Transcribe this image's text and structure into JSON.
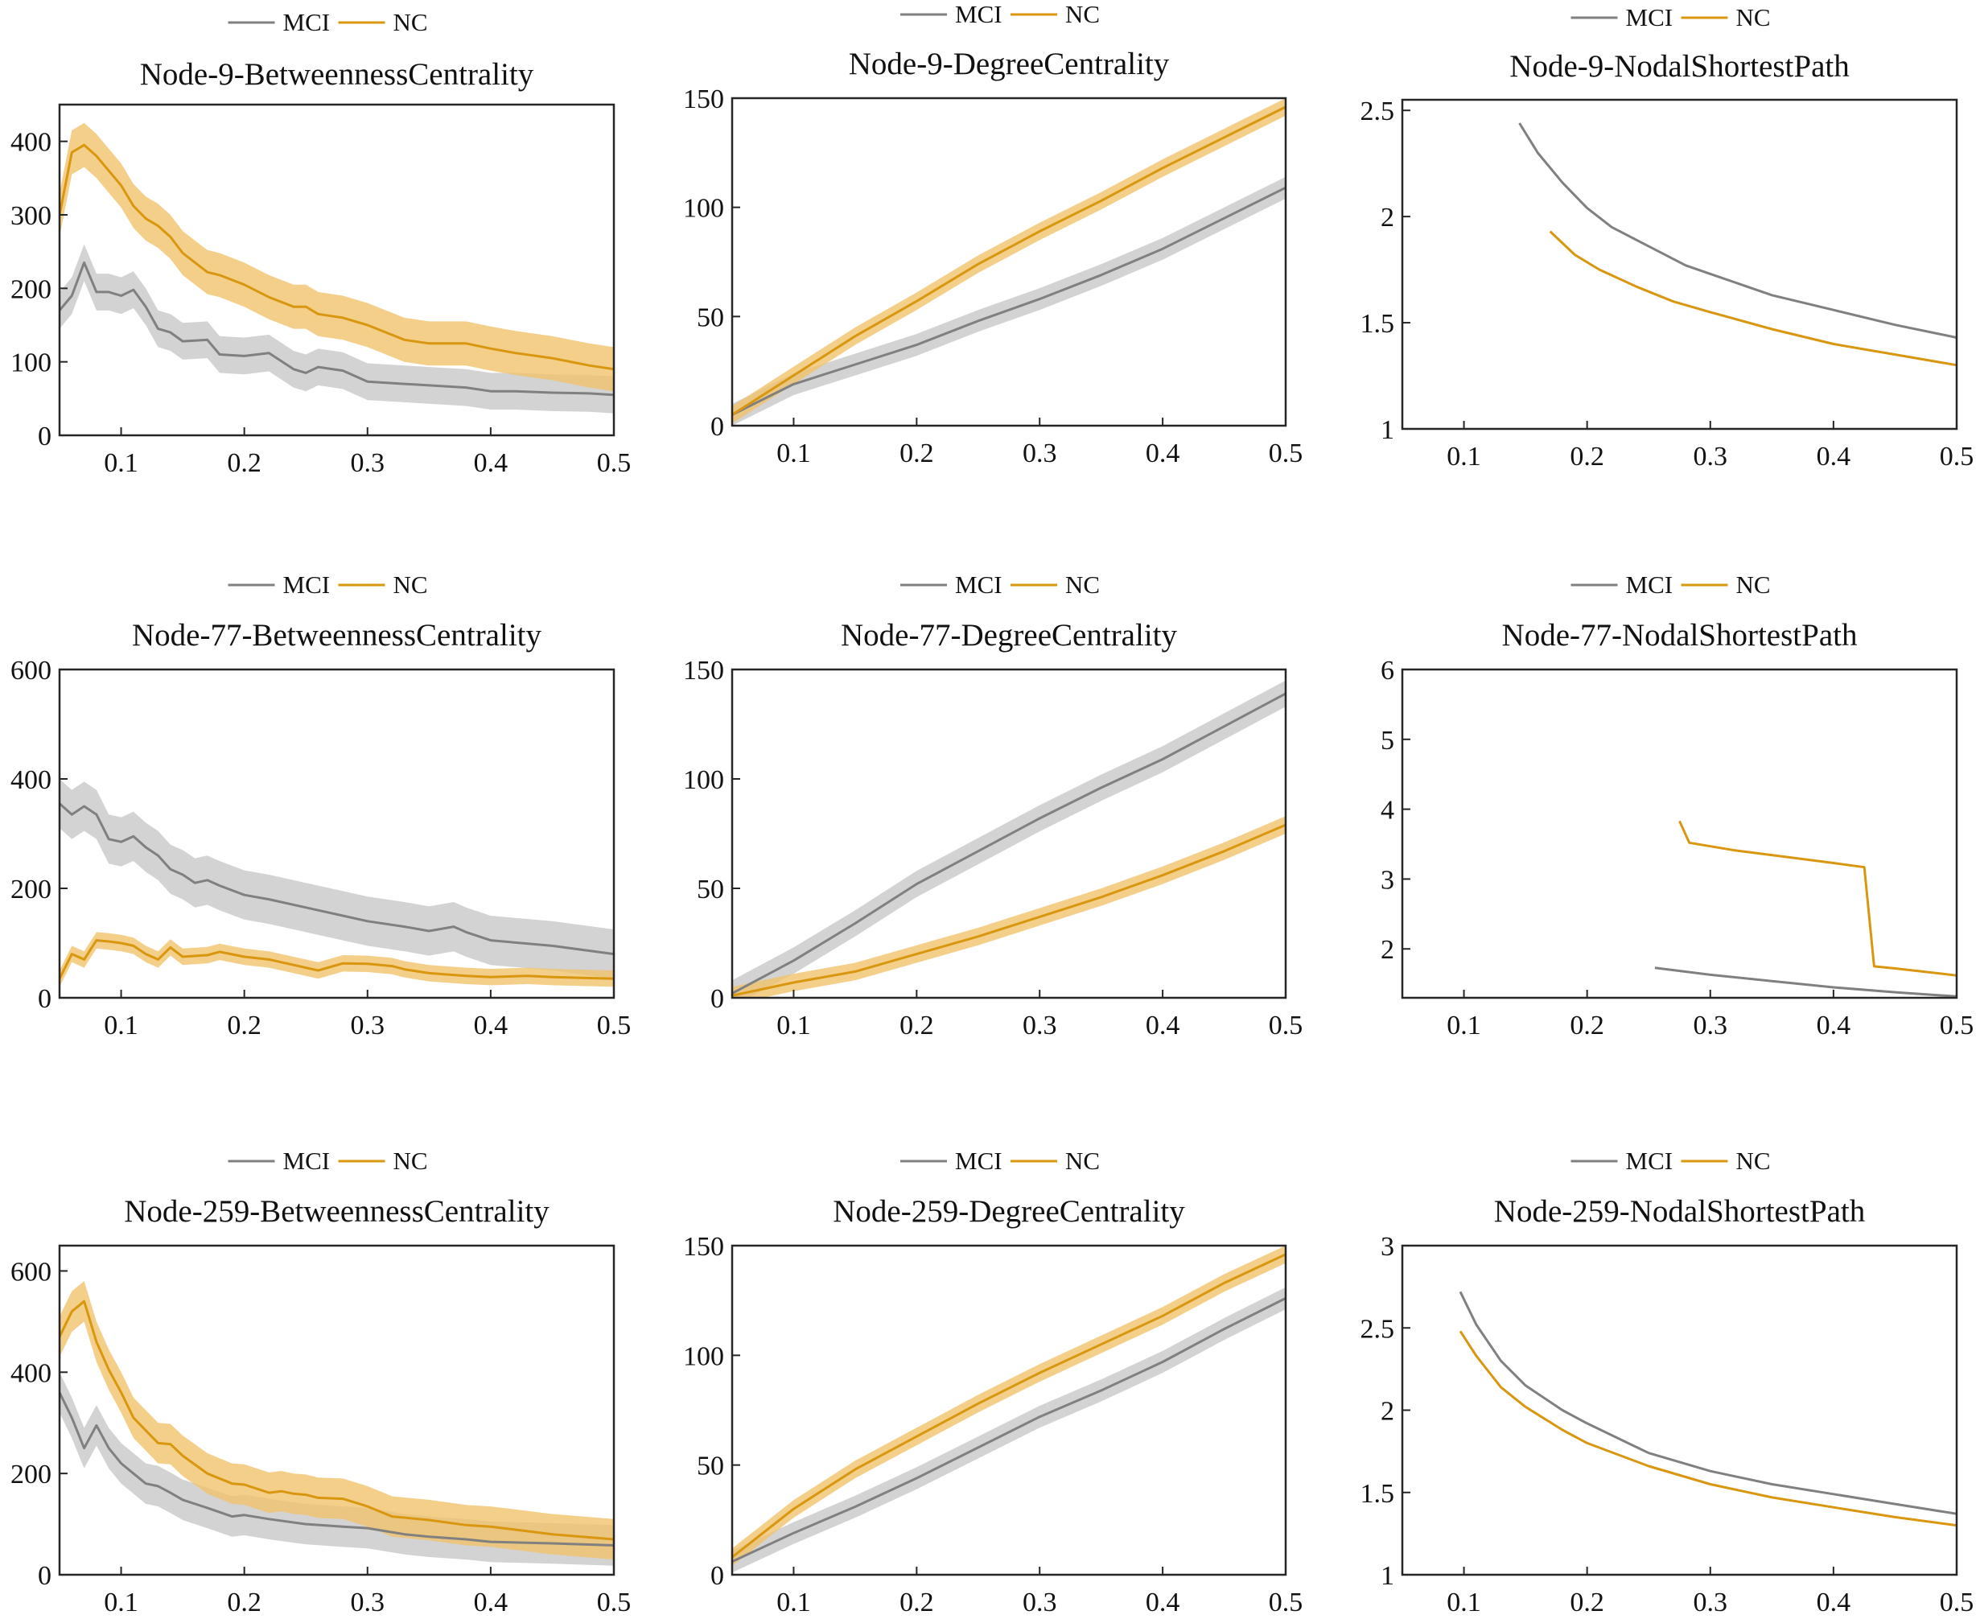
{
  "colors": {
    "mci": "#808080",
    "nc": "#D9960F",
    "mci_band": "#c8c8c8",
    "nc_band": "#f0c36b"
  },
  "legend": {
    "mci_label": "MCI",
    "nc_label": "NC"
  },
  "chart_data": [
    {
      "type": "line",
      "title": "Node-9-BetweennessCentrality",
      "xlabel": "",
      "ylabel": "",
      "xlim": [
        0.05,
        0.5
      ],
      "ylim": [
        0,
        450
      ],
      "xticks": [
        0.1,
        0.2,
        0.3,
        0.4,
        0.5
      ],
      "yticks": [
        0,
        100,
        200,
        300,
        400
      ],
      "series": [
        {
          "name": "MCI",
          "x": [
            0.05,
            0.06,
            0.07,
            0.08,
            0.09,
            0.1,
            0.11,
            0.12,
            0.13,
            0.14,
            0.15,
            0.17,
            0.18,
            0.2,
            0.22,
            0.24,
            0.25,
            0.26,
            0.28,
            0.3,
            0.33,
            0.35,
            0.38,
            0.4,
            0.42,
            0.45,
            0.48,
            0.5
          ],
          "y": [
            170,
            190,
            235,
            195,
            195,
            190,
            198,
            175,
            145,
            140,
            128,
            130,
            110,
            108,
            112,
            90,
            85,
            93,
            88,
            73,
            70,
            68,
            65,
            60,
            60,
            58,
            57,
            55
          ],
          "band": 25
        },
        {
          "name": "NC",
          "x": [
            0.05,
            0.06,
            0.07,
            0.08,
            0.09,
            0.1,
            0.11,
            0.12,
            0.13,
            0.14,
            0.15,
            0.17,
            0.18,
            0.2,
            0.22,
            0.24,
            0.25,
            0.26,
            0.28,
            0.3,
            0.33,
            0.35,
            0.38,
            0.4,
            0.42,
            0.45,
            0.48,
            0.5
          ],
          "y": [
            300,
            385,
            395,
            380,
            360,
            340,
            312,
            295,
            285,
            270,
            248,
            222,
            218,
            205,
            188,
            175,
            175,
            165,
            160,
            150,
            130,
            125,
            125,
            118,
            112,
            105,
            95,
            90
          ],
          "band": 30
        }
      ]
    },
    {
      "type": "line",
      "title": "Node-9-DegreeCentrality",
      "xlabel": "",
      "ylabel": "",
      "xlim": [
        0.05,
        0.5
      ],
      "ylim": [
        0,
        150
      ],
      "xticks": [
        0.1,
        0.2,
        0.3,
        0.4,
        0.5
      ],
      "yticks": [
        0,
        50,
        100,
        150
      ],
      "series": [
        {
          "name": "MCI",
          "x": [
            0.05,
            0.1,
            0.15,
            0.2,
            0.25,
            0.3,
            0.35,
            0.4,
            0.45,
            0.5
          ],
          "y": [
            5,
            19,
            28,
            37,
            48,
            58,
            69,
            81,
            95,
            109
          ],
          "band": 5
        },
        {
          "name": "NC",
          "x": [
            0.05,
            0.1,
            0.15,
            0.2,
            0.25,
            0.3,
            0.35,
            0.4,
            0.45,
            0.5
          ],
          "y": [
            5,
            23,
            41,
            57,
            74,
            89,
            103,
            118,
            132,
            146
          ],
          "band": 4
        }
      ]
    },
    {
      "type": "line",
      "title": "Node-9-NodalShortestPath",
      "xlabel": "",
      "ylabel": "",
      "xlim": [
        0.05,
        0.5
      ],
      "ylim": [
        1,
        2.55
      ],
      "xticks": [
        0.1,
        0.2,
        0.3,
        0.4,
        0.5
      ],
      "yticks": [
        1,
        1.5,
        2,
        2.5
      ],
      "series": [
        {
          "name": "MCI",
          "x": [
            0.145,
            0.16,
            0.18,
            0.2,
            0.22,
            0.25,
            0.28,
            0.3,
            0.35,
            0.4,
            0.45,
            0.5
          ],
          "y": [
            2.44,
            2.3,
            2.16,
            2.04,
            1.95,
            1.86,
            1.77,
            1.73,
            1.63,
            1.56,
            1.49,
            1.43
          ],
          "band": 0
        },
        {
          "name": "NC",
          "x": [
            0.17,
            0.19,
            0.21,
            0.24,
            0.27,
            0.3,
            0.35,
            0.4,
            0.45,
            0.5
          ],
          "y": [
            1.93,
            1.82,
            1.75,
            1.67,
            1.6,
            1.55,
            1.47,
            1.4,
            1.35,
            1.3
          ],
          "band": 0
        }
      ]
    },
    {
      "type": "line",
      "title": "Node-77-BetweennessCentrality",
      "xlabel": "",
      "ylabel": "",
      "xlim": [
        0.05,
        0.5
      ],
      "ylim": [
        0,
        600
      ],
      "xticks": [
        0.1,
        0.2,
        0.3,
        0.4,
        0.5
      ],
      "yticks": [
        0,
        200,
        400,
        600
      ],
      "series": [
        {
          "name": "MCI",
          "x": [
            0.05,
            0.06,
            0.07,
            0.08,
            0.09,
            0.1,
            0.11,
            0.12,
            0.13,
            0.14,
            0.15,
            0.16,
            0.17,
            0.18,
            0.2,
            0.22,
            0.25,
            0.28,
            0.3,
            0.33,
            0.35,
            0.37,
            0.38,
            0.4,
            0.45,
            0.5
          ],
          "y": [
            355,
            335,
            350,
            335,
            290,
            285,
            295,
            275,
            260,
            235,
            225,
            210,
            215,
            205,
            188,
            180,
            165,
            150,
            140,
            130,
            122,
            130,
            120,
            105,
            95,
            80
          ],
          "band": 45
        },
        {
          "name": "NC",
          "x": [
            0.05,
            0.06,
            0.07,
            0.08,
            0.09,
            0.1,
            0.11,
            0.12,
            0.13,
            0.14,
            0.15,
            0.17,
            0.18,
            0.2,
            0.22,
            0.24,
            0.25,
            0.26,
            0.28,
            0.3,
            0.32,
            0.33,
            0.35,
            0.38,
            0.4,
            0.43,
            0.45,
            0.5
          ],
          "y": [
            35,
            80,
            70,
            105,
            103,
            100,
            95,
            80,
            70,
            92,
            75,
            78,
            84,
            75,
            70,
            60,
            55,
            50,
            63,
            62,
            58,
            52,
            45,
            40,
            38,
            40,
            38,
            35
          ],
          "band": 15
        }
      ]
    },
    {
      "type": "line",
      "title": "Node-77-DegreeCentrality",
      "xlabel": "",
      "ylabel": "",
      "xlim": [
        0.05,
        0.5
      ],
      "ylim": [
        0,
        150
      ],
      "xticks": [
        0.1,
        0.2,
        0.3,
        0.4,
        0.5
      ],
      "yticks": [
        0,
        50,
        100,
        150
      ],
      "series": [
        {
          "name": "MCI",
          "x": [
            0.05,
            0.1,
            0.15,
            0.2,
            0.25,
            0.3,
            0.35,
            0.4,
            0.45,
            0.5
          ],
          "y": [
            2,
            17,
            34,
            52,
            67,
            82,
            96,
            109,
            124,
            139
          ],
          "band": 6
        },
        {
          "name": "NC",
          "x": [
            0.05,
            0.1,
            0.15,
            0.2,
            0.25,
            0.3,
            0.35,
            0.4,
            0.45,
            0.5
          ],
          "y": [
            1,
            7,
            12,
            20,
            28,
            37,
            46,
            56,
            67,
            79
          ],
          "band": 4
        }
      ]
    },
    {
      "type": "line",
      "title": "Node-77-NodalShortestPath",
      "xlabel": "",
      "ylabel": "",
      "xlim": [
        0.05,
        0.5
      ],
      "ylim": [
        1.3,
        6
      ],
      "xticks": [
        0.1,
        0.2,
        0.3,
        0.4,
        0.5
      ],
      "yticks": [
        2,
        3,
        4,
        5,
        6
      ],
      "series": [
        {
          "name": "MCI",
          "x": [
            0.255,
            0.3,
            0.35,
            0.4,
            0.45,
            0.5
          ],
          "y": [
            1.73,
            1.63,
            1.54,
            1.45,
            1.38,
            1.32
          ],
          "band": 0
        },
        {
          "name": "NC",
          "x": [
            0.275,
            0.283,
            0.32,
            0.36,
            0.4,
            0.425,
            0.433,
            0.45,
            0.5
          ],
          "y": [
            3.83,
            3.52,
            3.41,
            3.32,
            3.23,
            3.17,
            1.75,
            1.72,
            1.62
          ],
          "band": 0
        }
      ]
    },
    {
      "type": "line",
      "title": "Node-259-BetweennessCentrality",
      "xlabel": "",
      "ylabel": "",
      "xlim": [
        0.05,
        0.5
      ],
      "ylim": [
        0,
        650
      ],
      "xticks": [
        0.1,
        0.2,
        0.3,
        0.4,
        0.5
      ],
      "yticks": [
        0,
        200,
        400,
        600
      ],
      "series": [
        {
          "name": "MCI",
          "x": [
            0.05,
            0.06,
            0.07,
            0.08,
            0.09,
            0.1,
            0.11,
            0.12,
            0.13,
            0.14,
            0.15,
            0.17,
            0.19,
            0.2,
            0.22,
            0.25,
            0.28,
            0.3,
            0.33,
            0.35,
            0.38,
            0.4,
            0.45,
            0.5
          ],
          "y": [
            360,
            310,
            250,
            295,
            250,
            220,
            200,
            180,
            175,
            162,
            148,
            132,
            115,
            118,
            110,
            100,
            95,
            92,
            80,
            75,
            70,
            65,
            62,
            58
          ],
          "band": 40
        },
        {
          "name": "NC",
          "x": [
            0.05,
            0.06,
            0.07,
            0.08,
            0.09,
            0.1,
            0.11,
            0.12,
            0.13,
            0.14,
            0.15,
            0.17,
            0.19,
            0.2,
            0.22,
            0.23,
            0.24,
            0.25,
            0.26,
            0.28,
            0.3,
            0.32,
            0.35,
            0.38,
            0.4,
            0.45,
            0.5
          ],
          "y": [
            470,
            520,
            540,
            460,
            405,
            360,
            310,
            285,
            260,
            258,
            235,
            200,
            180,
            178,
            162,
            165,
            160,
            158,
            152,
            150,
            135,
            115,
            108,
            98,
            95,
            80,
            70
          ],
          "band": 40
        }
      ]
    },
    {
      "type": "line",
      "title": "Node-259-DegreeCentrality",
      "xlabel": "",
      "ylabel": "",
      "xlim": [
        0.05,
        0.5
      ],
      "ylim": [
        0,
        150
      ],
      "xticks": [
        0.1,
        0.2,
        0.3,
        0.4,
        0.5
      ],
      "yticks": [
        0,
        50,
        100,
        150
      ],
      "series": [
        {
          "name": "MCI",
          "x": [
            0.05,
            0.1,
            0.15,
            0.2,
            0.25,
            0.3,
            0.35,
            0.4,
            0.45,
            0.5
          ],
          "y": [
            6,
            19,
            31,
            44,
            58,
            72,
            84,
            97,
            112,
            126
          ],
          "band": 5
        },
        {
          "name": "NC",
          "x": [
            0.05,
            0.1,
            0.15,
            0.2,
            0.25,
            0.3,
            0.35,
            0.4,
            0.45,
            0.5
          ],
          "y": [
            8,
            30,
            48,
            63,
            78,
            92,
            105,
            118,
            133,
            146
          ],
          "band": 4
        }
      ]
    },
    {
      "type": "line",
      "title": "Node-259-NodalShortestPath",
      "xlabel": "",
      "ylabel": "",
      "xlim": [
        0.05,
        0.5
      ],
      "ylim": [
        1,
        3
      ],
      "xticks": [
        0.1,
        0.2,
        0.3,
        0.4,
        0.5
      ],
      "yticks": [
        1,
        1.5,
        2,
        2.5,
        3
      ],
      "series": [
        {
          "name": "MCI",
          "x": [
            0.097,
            0.11,
            0.13,
            0.15,
            0.18,
            0.2,
            0.25,
            0.3,
            0.35,
            0.4,
            0.45,
            0.5
          ],
          "y": [
            2.72,
            2.52,
            2.3,
            2.15,
            2.0,
            1.92,
            1.74,
            1.63,
            1.55,
            1.49,
            1.43,
            1.37
          ],
          "band": 0
        },
        {
          "name": "NC",
          "x": [
            0.097,
            0.11,
            0.13,
            0.15,
            0.18,
            0.2,
            0.25,
            0.3,
            0.35,
            0.4,
            0.45,
            0.5
          ],
          "y": [
            2.48,
            2.33,
            2.14,
            2.02,
            1.88,
            1.8,
            1.66,
            1.55,
            1.47,
            1.41,
            1.35,
            1.3
          ],
          "band": 0
        }
      ]
    }
  ]
}
